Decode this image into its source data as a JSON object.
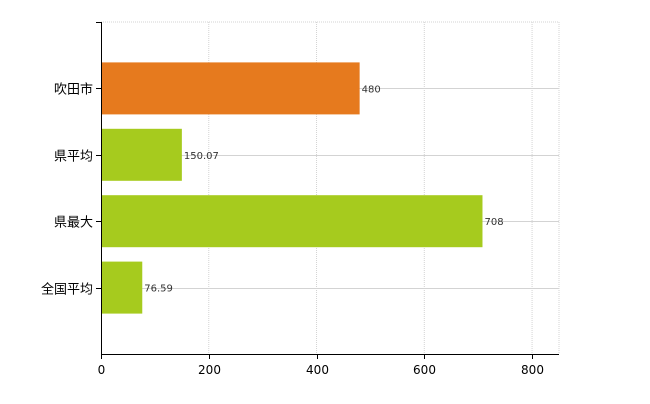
{
  "chart_data": {
    "type": "bar",
    "orientation": "horizontal",
    "categories": [
      "吹田市",
      "県平均",
      "県最大",
      "全国平均"
    ],
    "values": [
      480,
      150.07,
      708,
      76.59
    ],
    "value_labels": [
      "480",
      "150.07",
      "708",
      "76.59"
    ],
    "bar_colors": [
      "#e67a1e",
      "#a6cb1e",
      "#a6cb1e",
      "#a6cb1e"
    ],
    "xlim": [
      0,
      850
    ],
    "x_ticks": [
      0,
      200,
      400,
      600,
      800
    ],
    "x_tick_labels": [
      "0",
      "200",
      "400",
      "600",
      "800"
    ],
    "grid": true,
    "grid_color": "#d3d3d3",
    "axis_color": "#000000"
  }
}
